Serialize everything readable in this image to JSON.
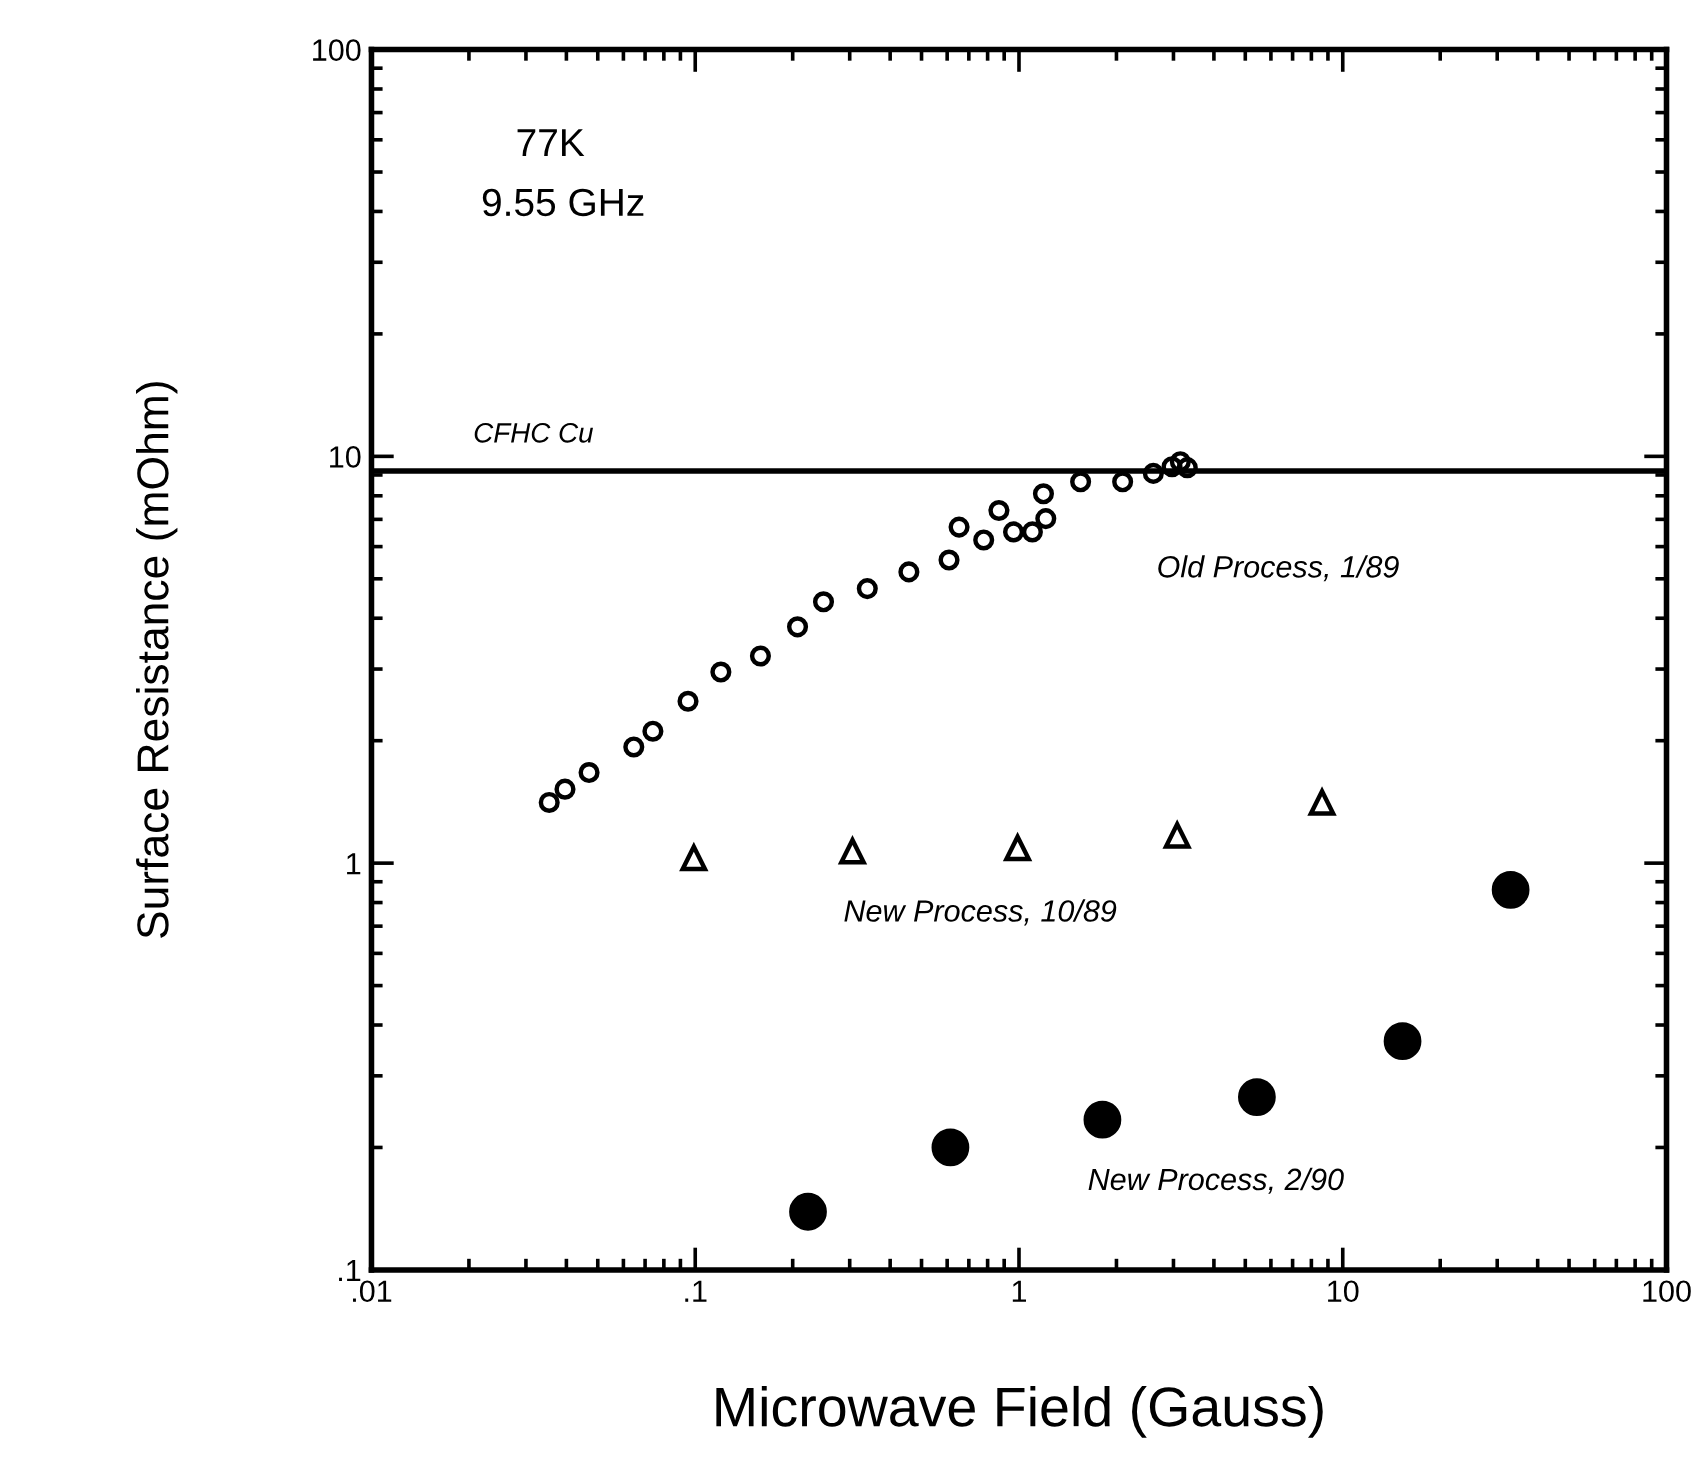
{
  "chart_data": {
    "type": "scatter",
    "xlabel": "Microwave Field (Gauss)",
    "ylabel": "Surface Resistance (mOhm)",
    "log": "xy",
    "grid": false,
    "legend": false,
    "xlim": [
      0.01,
      100
    ],
    "ylim": [
      0.1,
      100
    ],
    "xticks": [
      {
        "value": 0.01,
        "label": ".01"
      },
      {
        "value": 0.1,
        "label": ".1"
      },
      1,
      10,
      100
    ],
    "yticks": [
      {
        "value": 0.1,
        "label": ".1"
      },
      1,
      10,
      100
    ],
    "annotations": [
      "77K",
      "9.55 GHz"
    ],
    "ref_lines": [
      {
        "axis": "y",
        "value": 9.2,
        "label": "CFHC Cu",
        "color": "#000000",
        "line_style": "solid"
      }
    ],
    "series": [
      {
        "name": "Old Process, 1/89",
        "color": "#000000",
        "marker": "circle",
        "x": [
          0.0354,
          0.0396,
          0.047,
          0.0646,
          0.074,
          0.095,
          0.12,
          0.159,
          0.207,
          0.249,
          0.34,
          0.457,
          0.608,
          0.653,
          0.778,
          0.867,
          0.962,
          1.1,
          1.21,
          1.19,
          1.55,
          2.09,
          2.6,
          2.97,
          3.15,
          3.31
        ],
        "values": [
          1.41,
          1.52,
          1.67,
          1.93,
          2.11,
          2.5,
          2.95,
          3.23,
          3.81,
          4.39,
          4.73,
          5.2,
          5.56,
          6.7,
          6.23,
          7.36,
          6.52,
          6.52,
          7.03,
          8.09,
          8.66,
          8.66,
          9.08,
          9.43,
          9.7,
          9.38
        ]
      },
      {
        "name": "New Process, 10/89",
        "color": "#000000",
        "marker": "triangle",
        "x": [
          0.099,
          0.306,
          0.99,
          3.08,
          8.63
        ],
        "values": [
          1.03,
          1.07,
          1.09,
          1.17,
          1.41
        ]
      },
      {
        "name": "New Process, 2/90",
        "color": "#000000",
        "marker": "circle",
        "x": [
          0.223,
          0.614,
          1.81,
          5.43,
          15.3,
          33
        ],
        "values": [
          0.139,
          0.2,
          0.234,
          0.266,
          0.365,
          0.86
        ]
      }
    ]
  }
}
